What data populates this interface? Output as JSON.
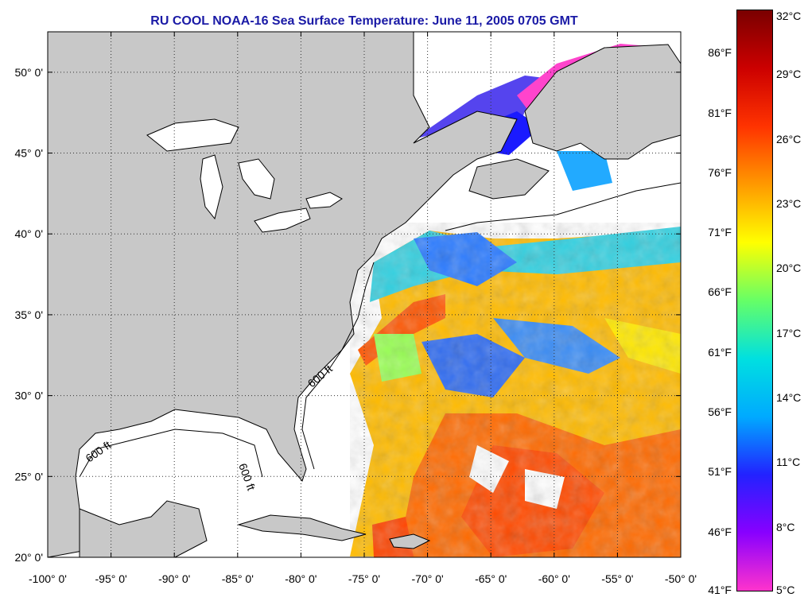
{
  "title": "RU COOL  NOAA-16  Sea Surface Temperature:  June 11, 2005 0705 GMT",
  "map": {
    "lon_range": [
      -100,
      -50
    ],
    "lat_range": [
      20,
      52.5
    ],
    "lat_labels": [
      "50° 0'",
      "45° 0'",
      "40° 0'",
      "35° 0'",
      "30° 0'",
      "25° 0'",
      "20° 0'"
    ],
    "lat_values": [
      50,
      45,
      40,
      35,
      30,
      25,
      20
    ],
    "lon_labels": [
      "-100° 0'",
      "-95° 0'",
      "-90° 0'",
      "-85° 0'",
      "-80° 0'",
      "-75° 0'",
      "-70° 0'",
      "-65° 0'",
      "-60° 0'",
      "-55° 0'",
      "-50° 0'"
    ],
    "lon_values": [
      -100,
      -95,
      -90,
      -85,
      -80,
      -75,
      -70,
      -65,
      -60,
      -55,
      -50
    ],
    "isobath_label": "600 ft",
    "land_color": "#c8c8c8",
    "ocean_color": "#ffffff"
  },
  "colorbar": {
    "celsius_labels": [
      "32°C",
      "29°C",
      "26°C",
      "23°C",
      "20°C",
      "17°C",
      "14°C",
      "11°C",
      "8°C",
      "5°C"
    ],
    "celsius_values": [
      32,
      29,
      26,
      23,
      20,
      17,
      14,
      11,
      8,
      5
    ],
    "fahrenheit_labels": [
      "86°F",
      "81°F",
      "76°F",
      "71°F",
      "66°F",
      "61°F",
      "56°F",
      "51°F",
      "46°F",
      "41°F"
    ],
    "fahrenheit_values": [
      86,
      81,
      76,
      71,
      66,
      61,
      56,
      51,
      46,
      41
    ],
    "range_c": [
      5,
      32
    ],
    "colors": [
      "#ff33cc",
      "#8800ff",
      "#2222ff",
      "#00aaff",
      "#00e0e0",
      "#66ff66",
      "#ffff00",
      "#ff9900",
      "#ff3300",
      "#cc0000",
      "#7a0000"
    ]
  }
}
